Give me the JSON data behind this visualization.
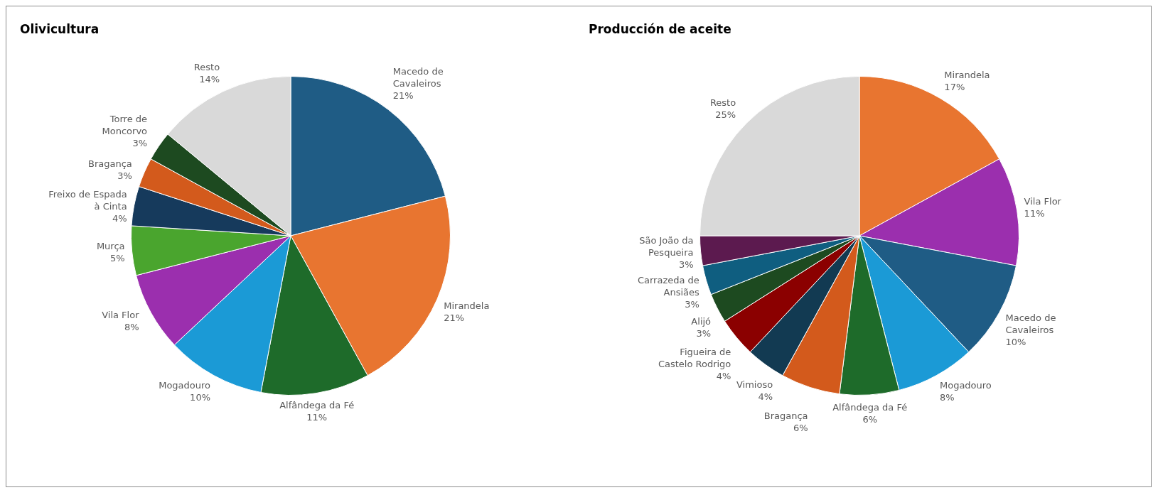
{
  "chart_data": [
    {
      "type": "pie",
      "title": "Olivicultura",
      "categories": [
        "Macedo de Cavaleiros",
        "Mirandela",
        "Alfândega da Fé",
        "Mogadouro",
        "Vila Flor",
        "Murça",
        "Freixo de Espada à Cinta",
        "Bragança",
        "Torre de Moncorvo",
        "Resto"
      ],
      "values": [
        21,
        21,
        11,
        10,
        8,
        5,
        4,
        3,
        3,
        14
      ],
      "value_labels": [
        "21%",
        "21%",
        "11%",
        "10%",
        "8%",
        "5%",
        "4%",
        "3%",
        "3%",
        "14%"
      ],
      "colors": [
        "#1f5c85",
        "#e87530",
        "#1e6b2a",
        "#1b9ad6",
        "#9b2fae",
        "#4aa52e",
        "#163a5c",
        "#d35a1c",
        "#1d4a20",
        "#d9d9d9"
      ]
    },
    {
      "type": "pie",
      "title": "Producción de aceite",
      "categories": [
        "Mirandela",
        "Vila Flor",
        "Macedo de Cavaleiros",
        "Mogadouro",
        "Alfândega da Fé",
        "Bragança",
        "Vimioso",
        "Figueira de Castelo Rodrigo",
        "Alijó",
        "Carrazeda de Ansiães",
        "São João da Pesqueira",
        "Resto"
      ],
      "values": [
        17,
        11,
        10,
        8,
        6,
        6,
        4,
        4,
        3,
        3,
        3,
        25
      ],
      "value_labels": [
        "17%",
        "11%",
        "10%",
        "8%",
        "6%",
        "6%",
        "4%",
        "4%",
        "3%",
        "3%",
        "3%",
        "25%"
      ],
      "colors": [
        "#e87530",
        "#9b2fae",
        "#1f5c85",
        "#1b9ad6",
        "#1e6b2a",
        "#d35a1c",
        "#123a52",
        "#8b0000",
        "#1d4a20",
        "#0f5e80",
        "#5c1a4f",
        "#d9d9d9"
      ]
    }
  ]
}
